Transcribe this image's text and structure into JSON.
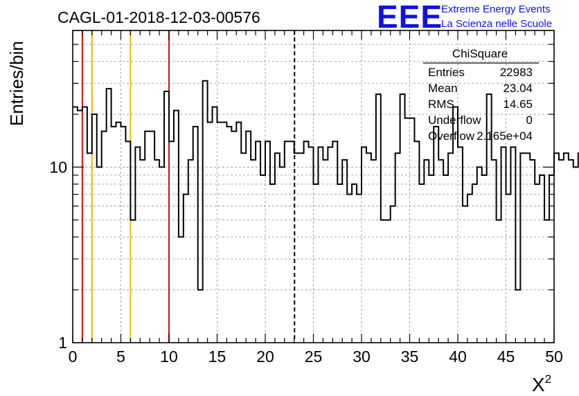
{
  "header": {
    "run_title": "CAGL-01-2018-12-03-00576",
    "logo_text": "EEE",
    "logo_line1": "Extreme Energy Events",
    "logo_line2": "La Scienza nelle Scuole"
  },
  "colors": {
    "logo_blue": "#1010e8",
    "red_line": "#d01010",
    "yellow_line": "#f0b800",
    "grid": "#9a9a9a"
  },
  "stats": {
    "title": "ChiSquare",
    "rows": [
      {
        "label": "Entries",
        "value": "22983"
      },
      {
        "label": "Mean",
        "value": "23.04"
      },
      {
        "label": "RMS",
        "value": "14.65"
      },
      {
        "label": "Underflow",
        "value": "0"
      },
      {
        "label": "Overflow",
        "value": "2.165e+04"
      }
    ]
  },
  "chart_data": {
    "type": "histogram",
    "title": "CAGL-01-2018-12-03-00576",
    "xlabel": "X²",
    "ylabel": "Entries/bin",
    "xlim": [
      0,
      50
    ],
    "ylim": [
      1,
      60
    ],
    "yscale": "log",
    "grid": true,
    "bin_width": 0.5,
    "bin_start": 0,
    "xticks": [
      "0",
      "5",
      "10",
      "15",
      "20",
      "25",
      "30",
      "35",
      "40",
      "45",
      "50"
    ],
    "yticks": [
      "1",
      "10"
    ],
    "values": [
      22,
      21,
      22,
      12,
      20,
      10,
      16,
      28,
      17,
      18,
      17,
      14,
      5,
      13,
      11,
      16,
      16,
      11,
      10,
      27,
      14,
      21,
      4,
      7,
      11,
      17,
      2,
      31,
      18,
      22,
      18,
      18,
      17,
      16,
      18,
      12,
      16,
      11,
      14,
      9,
      14,
      8,
      12,
      10,
      14,
      14,
      12,
      12,
      14,
      13,
      8,
      13,
      11,
      13,
      14,
      8,
      11,
      7,
      8,
      7,
      13,
      12,
      11,
      26,
      5,
      5,
      6,
      12,
      26,
      19,
      19,
      14,
      8,
      11,
      9,
      17,
      11,
      9,
      12,
      22,
      13,
      6,
      7,
      8,
      10,
      9,
      26,
      11,
      5,
      13,
      7,
      13,
      2,
      12,
      12,
      11,
      8,
      9,
      5,
      9,
      12,
      11,
      12,
      11,
      10,
      12,
      11
    ],
    "vertical_lines": [
      {
        "x": 1,
        "color": "red",
        "style": "solid"
      },
      {
        "x": 2,
        "color": "yellow",
        "style": "solid"
      },
      {
        "x": 6,
        "color": "yellow",
        "style": "solid"
      },
      {
        "x": 10,
        "color": "red",
        "style": "solid"
      },
      {
        "x": 23.04,
        "color": "black",
        "style": "dashed"
      }
    ]
  }
}
